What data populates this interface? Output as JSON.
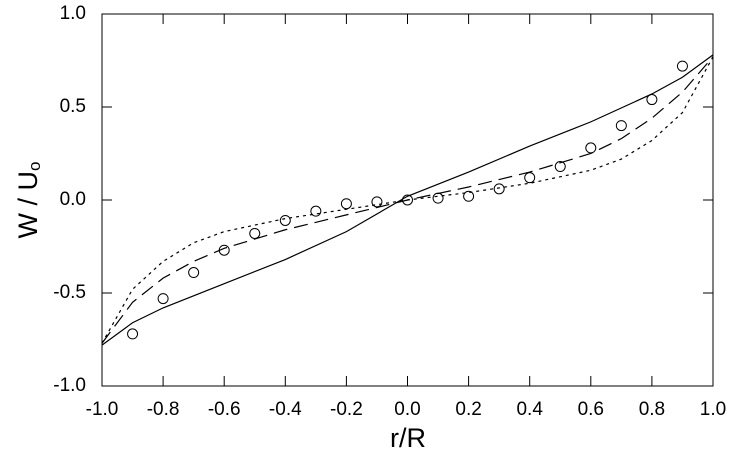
{
  "chart_data": {
    "type": "line",
    "x_label": "r/R",
    "y_label": "W / U",
    "y_label_subscript": "o",
    "xlim": [
      -1,
      1
    ],
    "ylim": [
      -1,
      1
    ],
    "xticks": [
      {
        "value": -1,
        "label": "-1.0"
      },
      {
        "value": -0.8,
        "label": "-0.8"
      },
      {
        "value": -0.6,
        "label": "-0.6"
      },
      {
        "value": -0.4,
        "label": "-0.4"
      },
      {
        "value": -0.2,
        "label": "-0.2"
      },
      {
        "value": 0,
        "label": "0.0"
      },
      {
        "value": 0.2,
        "label": "0.2"
      },
      {
        "value": 0.4,
        "label": "0.4"
      },
      {
        "value": 0.6,
        "label": "0.6"
      },
      {
        "value": 0.8,
        "label": "0.8"
      },
      {
        "value": 1,
        "label": "1.0"
      }
    ],
    "yticks": [
      {
        "value": -1,
        "label": "-1.0"
      },
      {
        "value": -0.5,
        "label": "-0.5"
      },
      {
        "value": 0,
        "label": "0.0"
      },
      {
        "value": 0.5,
        "label": "0.5"
      },
      {
        "value": 1,
        "label": "1.0"
      }
    ],
    "grid": false,
    "series": [
      {
        "type": "line",
        "dash": "solid",
        "color": "#000000",
        "x": [
          -1,
          -0.9,
          -0.8,
          -0.6,
          -0.4,
          -0.2,
          0,
          0.2,
          0.4,
          0.6,
          0.8,
          0.9,
          1
        ],
        "values": [
          -0.78,
          -0.66,
          -0.58,
          -0.45,
          -0.32,
          -0.17,
          0.02,
          0.15,
          0.29,
          0.42,
          0.57,
          0.66,
          0.78
        ]
      },
      {
        "type": "line",
        "dash": "dashed",
        "color": "#000000",
        "x": [
          -1,
          -0.9,
          -0.8,
          -0.7,
          -0.6,
          -0.4,
          -0.2,
          0,
          0.2,
          0.4,
          0.6,
          0.7,
          0.8,
          0.9,
          1
        ],
        "values": [
          -0.77,
          -0.55,
          -0.42,
          -0.33,
          -0.26,
          -0.16,
          -0.08,
          0,
          0.07,
          0.15,
          0.25,
          0.33,
          0.44,
          0.58,
          0.77
        ]
      },
      {
        "type": "line",
        "dash": "dotted",
        "color": "#000000",
        "x": [
          -1,
          -0.9,
          -0.8,
          -0.7,
          -0.6,
          -0.4,
          -0.2,
          0,
          0.2,
          0.4,
          0.6,
          0.7,
          0.8,
          0.9,
          1
        ],
        "values": [
          -0.77,
          -0.48,
          -0.33,
          -0.23,
          -0.17,
          -0.1,
          -0.05,
          0,
          0.04,
          0.09,
          0.16,
          0.22,
          0.32,
          0.47,
          0.77
        ]
      },
      {
        "type": "scatter",
        "marker": "circle",
        "color": "#000000",
        "x": [
          -0.9,
          -0.8,
          -0.7,
          -0.6,
          -0.5,
          -0.4,
          -0.3,
          -0.2,
          -0.1,
          0,
          0.1,
          0.2,
          0.3,
          0.4,
          0.5,
          0.6,
          0.7,
          0.8,
          0.9
        ],
        "values": [
          -0.72,
          -0.53,
          -0.39,
          -0.27,
          -0.18,
          -0.11,
          -0.06,
          -0.02,
          -0.01,
          0,
          0.01,
          0.02,
          0.06,
          0.12,
          0.18,
          0.28,
          0.4,
          0.54,
          0.72
        ]
      }
    ]
  }
}
